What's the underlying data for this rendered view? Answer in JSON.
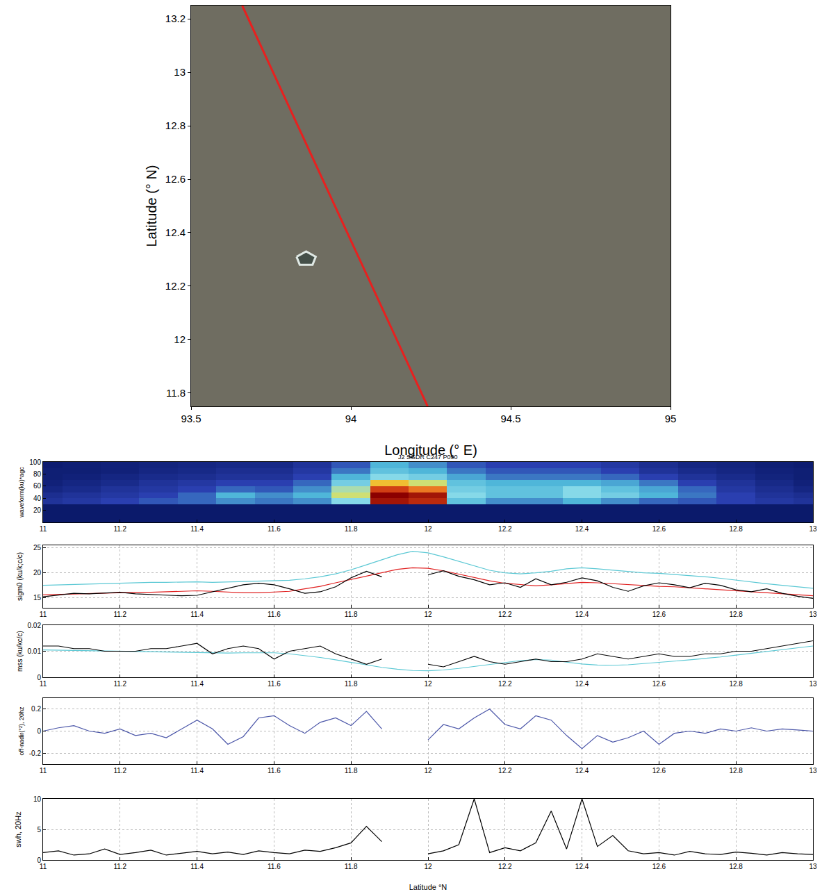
{
  "chart_data": [
    {
      "type": "line",
      "xlabel": "Longitude (° E)",
      "ylabel": "Latitude (° N)",
      "xlim": [
        93.5,
        95
      ],
      "ylim": [
        11.75,
        13.25
      ],
      "xticks": [
        93.5,
        94,
        94.5,
        95
      ],
      "yticks": [
        11.8,
        12,
        12.2,
        12.4,
        12.6,
        12.8,
        13,
        13.2
      ],
      "grid": false,
      "series": [
        {
          "color": "#e8201f",
          "x": [
            93.66,
            94.24
          ],
          "values": [
            13.25,
            11.75
          ]
        },
        {
          "type": "area",
          "color": "#dfe8e4",
          "x": [
            93.83,
            93.86,
            93.89,
            93.88,
            93.84,
            93.83
          ],
          "values": [
            12.31,
            12.33,
            12.31,
            12.28,
            12.28,
            12.31
          ]
        }
      ]
    },
    {
      "type": "heatmap",
      "title": "J2 SGDR C247 P090",
      "ylabel": "waveform(ku)*agc",
      "xlim": [
        11,
        13
      ],
      "ylim": [
        0,
        100
      ],
      "xticks": [
        11,
        11.2,
        11.4,
        11.6,
        11.8,
        12,
        12.2,
        12.4,
        12.6,
        12.8,
        13
      ],
      "yticks": [
        20,
        40,
        60,
        80,
        100
      ],
      "grid": false,
      "zlim": [
        0,
        1
      ],
      "x": [
        11,
        11.1,
        11.2,
        11.3,
        11.4,
        11.5,
        11.6,
        11.7,
        11.8,
        11.9,
        12,
        12.1,
        12.2,
        12.3,
        12.4,
        12.5,
        12.6,
        12.7,
        12.8,
        12.9,
        13
      ],
      "y": [
        5,
        15,
        25,
        35,
        45,
        55,
        65,
        75,
        85,
        95
      ],
      "cells": [
        [
          0,
          0,
          0,
          0,
          0,
          0,
          0,
          0,
          0,
          0,
          0,
          0,
          0,
          0,
          0,
          0,
          0,
          0,
          0,
          0,
          0
        ],
        [
          0,
          0,
          0,
          0,
          0,
          0,
          0,
          0,
          0,
          0,
          0,
          0,
          0,
          0,
          0,
          0,
          0,
          0,
          0,
          0,
          0
        ],
        [
          0,
          0,
          0,
          0,
          0,
          0,
          0,
          0,
          0,
          0,
          0,
          0,
          0,
          0,
          0,
          0,
          0,
          0,
          0,
          0,
          0
        ],
        [
          0.1,
          0.12,
          0.15,
          0.18,
          0.2,
          0.25,
          0.22,
          0.25,
          0.45,
          0.95,
          0.9,
          0.35,
          0.25,
          0.25,
          0.3,
          0.25,
          0.2,
          0.18,
          0.15,
          0.12,
          0.1
        ],
        [
          0.08,
          0.1,
          0.12,
          0.15,
          0.2,
          0.3,
          0.25,
          0.3,
          0.55,
          1.0,
          0.95,
          0.45,
          0.35,
          0.35,
          0.45,
          0.4,
          0.3,
          0.22,
          0.15,
          0.1,
          0.08
        ],
        [
          0.05,
          0.07,
          0.1,
          0.12,
          0.15,
          0.2,
          0.18,
          0.25,
          0.5,
          0.85,
          0.75,
          0.4,
          0.35,
          0.35,
          0.45,
          0.35,
          0.28,
          0.2,
          0.12,
          0.08,
          0.05
        ],
        [
          0.03,
          0.05,
          0.07,
          0.1,
          0.12,
          0.15,
          0.15,
          0.2,
          0.4,
          0.65,
          0.55,
          0.35,
          0.3,
          0.3,
          0.3,
          0.28,
          0.22,
          0.15,
          0.1,
          0.06,
          0.03
        ],
        [
          0.02,
          0.03,
          0.05,
          0.07,
          0.08,
          0.1,
          0.1,
          0.15,
          0.3,
          0.45,
          0.4,
          0.28,
          0.22,
          0.22,
          0.22,
          0.2,
          0.15,
          0.1,
          0.07,
          0.04,
          0.02
        ],
        [
          0.02,
          0.02,
          0.03,
          0.05,
          0.06,
          0.08,
          0.08,
          0.12,
          0.22,
          0.35,
          0.3,
          0.22,
          0.18,
          0.18,
          0.18,
          0.15,
          0.1,
          0.07,
          0.05,
          0.03,
          0.02
        ],
        [
          0.01,
          0.02,
          0.03,
          0.04,
          0.05,
          0.06,
          0.06,
          0.1,
          0.18,
          0.3,
          0.25,
          0.18,
          0.15,
          0.15,
          0.15,
          0.12,
          0.08,
          0.05,
          0.04,
          0.02,
          0.01
        ]
      ]
    },
    {
      "type": "line",
      "ylabel": "sigm0 (ku/k;c/c)",
      "xlim": [
        11,
        13
      ],
      "ylim": [
        13,
        25.5
      ],
      "xticks": [
        11,
        11.2,
        11.4,
        11.6,
        11.8,
        12,
        12.2,
        12.4,
        12.6,
        12.8,
        13
      ],
      "yticks": [
        15,
        20,
        25
      ],
      "grid": true,
      "x": [
        11,
        11.04,
        11.08,
        11.12,
        11.16,
        11.2,
        11.24,
        11.28,
        11.32,
        11.36,
        11.4,
        11.44,
        11.48,
        11.52,
        11.56,
        11.6,
        11.64,
        11.68,
        11.72,
        11.76,
        11.8,
        11.84,
        11.88,
        11.92,
        11.96,
        12,
        12.04,
        12.08,
        12.12,
        12.16,
        12.2,
        12.24,
        12.28,
        12.32,
        12.36,
        12.4,
        12.44,
        12.48,
        12.52,
        12.56,
        12.6,
        12.64,
        12.68,
        12.72,
        12.76,
        12.8,
        12.84,
        12.88,
        12.92,
        12.96,
        13
      ],
      "series": [
        {
          "color": "#5bc8d4",
          "values": [
            17.5,
            17.6,
            17.7,
            17.8,
            17.9,
            17.9,
            18.0,
            18.1,
            18.1,
            18.2,
            18.2,
            18.1,
            18.2,
            18.3,
            18.4,
            18.5,
            18.5,
            18.8,
            19.2,
            19.8,
            20.6,
            21.6,
            22.6,
            23.6,
            24.3,
            24.0,
            23.2,
            22.3,
            21.3,
            20.5,
            20.0,
            19.8,
            20.0,
            20.3,
            20.8,
            21.0,
            20.8,
            20.5,
            20.2,
            20.0,
            19.9,
            19.7,
            19.5,
            19.2,
            18.9,
            18.5,
            18.1,
            17.8,
            17.5,
            17.2,
            16.9
          ]
        },
        {
          "color": "#e02020",
          "values": [
            15.6,
            15.7,
            15.8,
            15.9,
            16.0,
            16.0,
            16.1,
            16.1,
            16.2,
            16.3,
            16.4,
            16.3,
            16.1,
            16.0,
            16.0,
            16.1,
            16.3,
            16.8,
            17.3,
            18.0,
            18.7,
            19.4,
            20.1,
            20.7,
            21.0,
            20.9,
            20.4,
            19.7,
            19.0,
            18.4,
            17.9,
            17.6,
            17.4,
            17.6,
            17.9,
            18.1,
            18.0,
            17.8,
            17.6,
            17.4,
            17.3,
            17.2,
            17.0,
            16.9,
            16.7,
            16.5,
            16.3,
            16.0,
            15.8,
            15.6,
            15.4
          ]
        },
        {
          "color": "#000000",
          "values": [
            15.2,
            15.6,
            15.9,
            15.8,
            16.0,
            16.1,
            15.8,
            15.7,
            15.6,
            15.4,
            15.5,
            16.2,
            16.9,
            17.6,
            17.9,
            17.6,
            16.8,
            15.9,
            16.2,
            17.2,
            19.0,
            20.3,
            19.2,
            null,
            null,
            19.6,
            20.4,
            19.3,
            18.6,
            17.6,
            18.0,
            17.1,
            18.8,
            17.6,
            18.1,
            19.0,
            18.4,
            17.1,
            16.3,
            17.4,
            18.0,
            17.6,
            17.0,
            17.9,
            17.5,
            16.6,
            16.2,
            16.8,
            15.9,
            15.3,
            14.9
          ]
        }
      ]
    },
    {
      "type": "line",
      "ylabel": "mss (ku/kc/c)",
      "xlim": [
        11,
        13
      ],
      "ylim": [
        0,
        0.02
      ],
      "xticks": [
        11,
        11.2,
        11.4,
        11.6,
        11.8,
        12,
        12.2,
        12.4,
        12.6,
        12.8,
        13
      ],
      "yticks": [
        0,
        0.01,
        0.02
      ],
      "grid": true,
      "x": [
        11,
        11.04,
        11.08,
        11.12,
        11.16,
        11.2,
        11.24,
        11.28,
        11.32,
        11.36,
        11.4,
        11.44,
        11.48,
        11.52,
        11.56,
        11.6,
        11.64,
        11.68,
        11.72,
        11.76,
        11.8,
        11.84,
        11.88,
        11.92,
        11.96,
        12,
        12.04,
        12.08,
        12.12,
        12.16,
        12.2,
        12.24,
        12.28,
        12.32,
        12.36,
        12.4,
        12.44,
        12.48,
        12.52,
        12.56,
        12.6,
        12.64,
        12.68,
        12.72,
        12.76,
        12.8,
        12.84,
        12.88,
        12.92,
        12.96,
        13
      ],
      "series": [
        {
          "color": "#5bc8d4",
          "values": [
            0.0105,
            0.0104,
            0.0103,
            0.0102,
            0.01,
            0.0099,
            0.0098,
            0.0097,
            0.0096,
            0.0095,
            0.0094,
            0.0093,
            0.0093,
            0.0094,
            0.0095,
            0.0094,
            0.009,
            0.0084,
            0.0076,
            0.0067,
            0.0057,
            0.0047,
            0.0038,
            0.0031,
            0.0026,
            0.0025,
            0.0028,
            0.0034,
            0.0042,
            0.005,
            0.0058,
            0.0064,
            0.0068,
            0.0066,
            0.0058,
            0.0051,
            0.0047,
            0.0046,
            0.0048,
            0.0052,
            0.0057,
            0.0062,
            0.0067,
            0.0072,
            0.0078,
            0.0085,
            0.0092,
            0.0099,
            0.0106,
            0.0113,
            0.012
          ]
        },
        {
          "color": "#000000",
          "values": [
            0.012,
            0.012,
            0.011,
            0.011,
            0.01,
            0.01,
            0.01,
            0.011,
            0.011,
            0.012,
            0.013,
            0.009,
            0.011,
            0.012,
            0.011,
            0.007,
            0.01,
            0.011,
            0.012,
            0.009,
            0.007,
            0.005,
            0.007,
            null,
            null,
            0.005,
            0.004,
            0.006,
            0.008,
            0.006,
            0.005,
            0.006,
            0.007,
            0.006,
            0.006,
            0.007,
            0.009,
            0.008,
            0.007,
            0.008,
            0.009,
            0.008,
            0.008,
            0.009,
            0.009,
            0.01,
            0.01,
            0.011,
            0.012,
            0.013,
            0.014
          ]
        }
      ]
    },
    {
      "type": "line",
      "ylabel": "off-nadir(°²), 20hz",
      "xlim": [
        11,
        13
      ],
      "ylim": [
        -0.3,
        0.3
      ],
      "xticks": [
        11,
        11.2,
        11.4,
        11.6,
        11.8,
        12,
        12.2,
        12.4,
        12.6,
        12.8,
        13
      ],
      "yticks": [
        -0.2,
        0,
        0.2
      ],
      "grid": true,
      "x": [
        11,
        11.04,
        11.08,
        11.12,
        11.16,
        11.2,
        11.24,
        11.28,
        11.32,
        11.36,
        11.4,
        11.44,
        11.48,
        11.52,
        11.56,
        11.6,
        11.64,
        11.68,
        11.72,
        11.76,
        11.8,
        11.84,
        11.88,
        11.92,
        11.96,
        12,
        12.04,
        12.08,
        12.12,
        12.16,
        12.2,
        12.24,
        12.28,
        12.32,
        12.36,
        12.4,
        12.44,
        12.48,
        12.52,
        12.56,
        12.6,
        12.64,
        12.68,
        12.72,
        12.76,
        12.8,
        12.84,
        12.88,
        12.92,
        12.96,
        13
      ],
      "series": [
        {
          "color": "#4a55a8",
          "values": [
            0.0,
            0.03,
            0.05,
            0.0,
            -0.02,
            0.02,
            -0.04,
            -0.02,
            -0.06,
            0.02,
            0.1,
            0.02,
            -0.12,
            -0.05,
            0.12,
            0.14,
            0.05,
            -0.02,
            0.08,
            0.12,
            0.05,
            0.18,
            0.02,
            null,
            null,
            -0.08,
            0.06,
            0.02,
            0.12,
            0.2,
            0.06,
            0.02,
            0.14,
            0.1,
            -0.04,
            -0.16,
            -0.04,
            -0.1,
            -0.06,
            0.0,
            -0.12,
            -0.02,
            0.0,
            -0.02,
            0.02,
            0.0,
            0.03,
            0.0,
            0.02,
            0.01,
            0.0
          ]
        }
      ]
    },
    {
      "type": "line",
      "xlabel": "Latitude °N",
      "ylabel": "swh, 20Hz",
      "xlim": [
        11,
        13
      ],
      "ylim": [
        0,
        10
      ],
      "xticks": [
        11,
        11.2,
        11.4,
        11.6,
        11.8,
        12,
        12.2,
        12.4,
        12.6,
        12.8,
        13
      ],
      "yticks": [
        0,
        5,
        10
      ],
      "grid": true,
      "x": [
        11,
        11.04,
        11.08,
        11.12,
        11.16,
        11.2,
        11.24,
        11.28,
        11.32,
        11.36,
        11.4,
        11.44,
        11.48,
        11.52,
        11.56,
        11.6,
        11.64,
        11.68,
        11.72,
        11.76,
        11.8,
        11.84,
        11.88,
        11.92,
        11.96,
        12,
        12.04,
        12.08,
        12.12,
        12.16,
        12.2,
        12.24,
        12.28,
        12.32,
        12.36,
        12.4,
        12.44,
        12.48,
        12.52,
        12.56,
        12.6,
        12.64,
        12.68,
        12.72,
        12.76,
        12.8,
        12.84,
        12.88,
        12.92,
        12.96,
        13
      ],
      "series": [
        {
          "color": "#000000",
          "values": [
            1.2,
            1.5,
            0.8,
            1.0,
            1.8,
            0.9,
            1.2,
            1.6,
            0.8,
            1.1,
            1.4,
            1.0,
            1.3,
            0.9,
            1.5,
            1.2,
            1.0,
            1.6,
            1.4,
            2.0,
            2.8,
            5.5,
            3.0,
            null,
            null,
            1.0,
            1.5,
            2.5,
            10.0,
            1.2,
            2.0,
            1.5,
            2.8,
            8.0,
            1.8,
            10.0,
            2.2,
            4.0,
            1.5,
            1.0,
            1.2,
            0.8,
            1.4,
            1.0,
            0.9,
            1.3,
            1.1,
            0.8,
            1.2,
            1.0,
            0.9
          ]
        }
      ]
    }
  ]
}
